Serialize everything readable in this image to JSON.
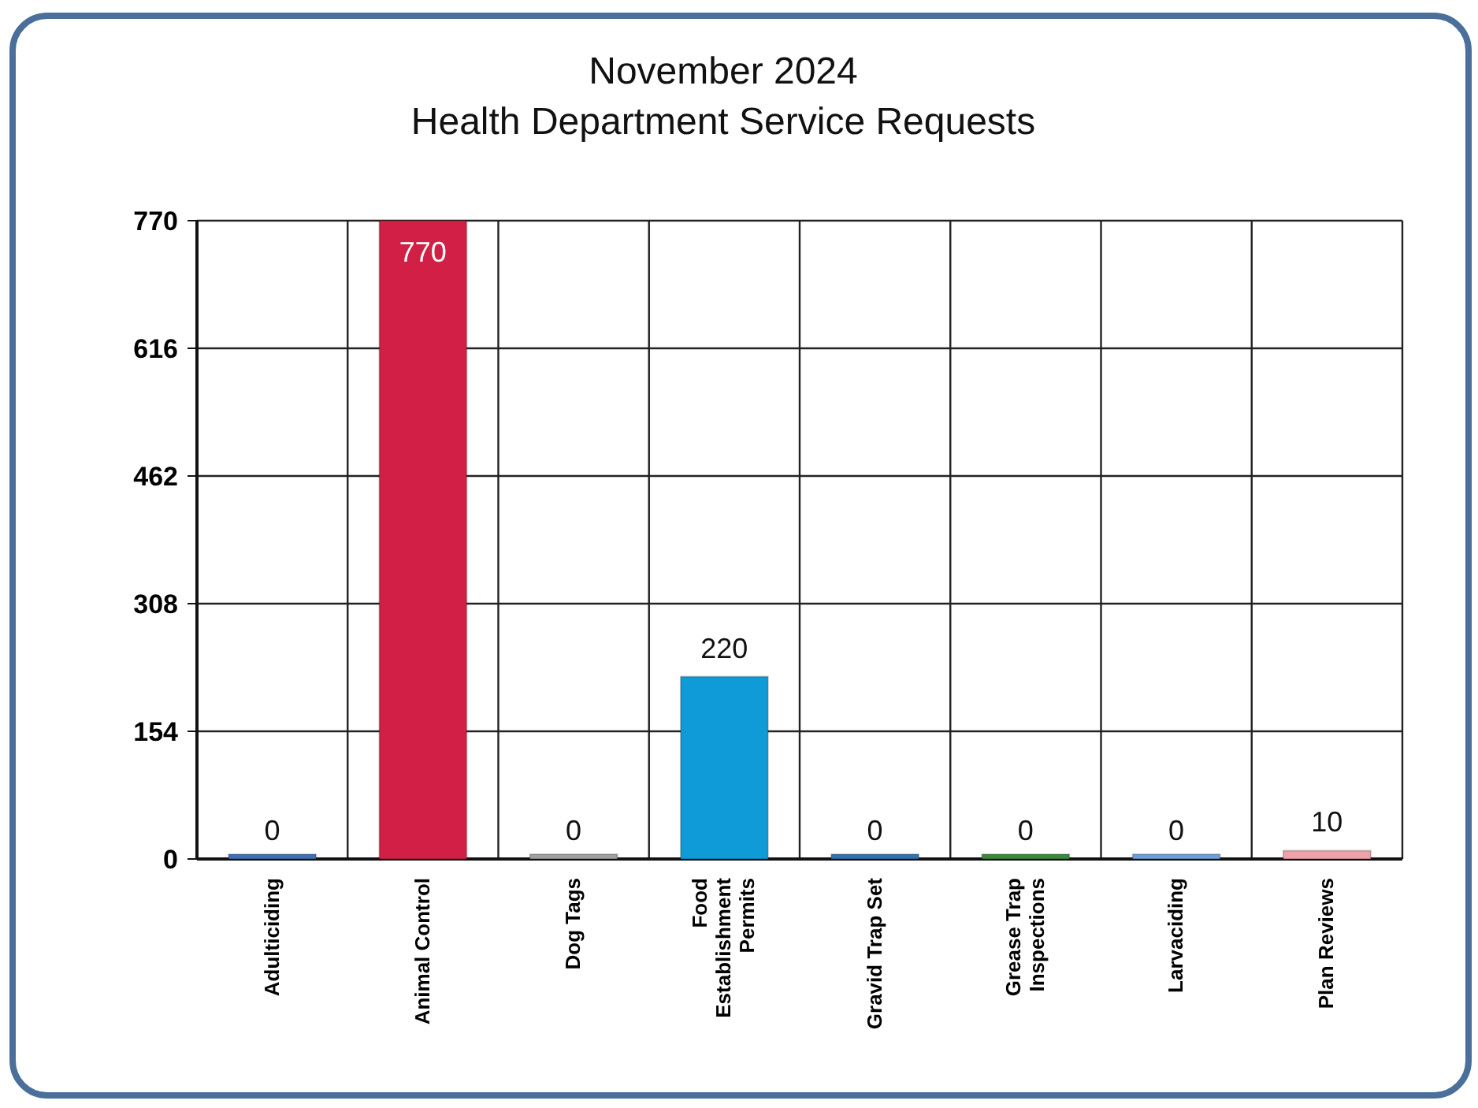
{
  "chart_data": {
    "type": "bar",
    "title": "November 2024\nHealth Department Service Requests",
    "categories": [
      "Adulticiding",
      "Animal Control",
      "Dog Tags",
      "Food Establishment Permits",
      "Gravid Trap Set",
      "Grease Trap Inspections",
      "Larvaciding",
      "Plan Reviews"
    ],
    "values": [
      0,
      770,
      0,
      220,
      0,
      0,
      0,
      10
    ],
    "colors": [
      "#3f6fb5",
      "#d11f45",
      "#a0a0a0",
      "#0e9bd8",
      "#2f73b3",
      "#3a8a3a",
      "#6f9fd8",
      "#f0a0a8"
    ],
    "ylim": [
      0,
      770
    ],
    "yticks": [
      0,
      154,
      308,
      462,
      616,
      770
    ],
    "grid": true,
    "data_labels": true
  }
}
